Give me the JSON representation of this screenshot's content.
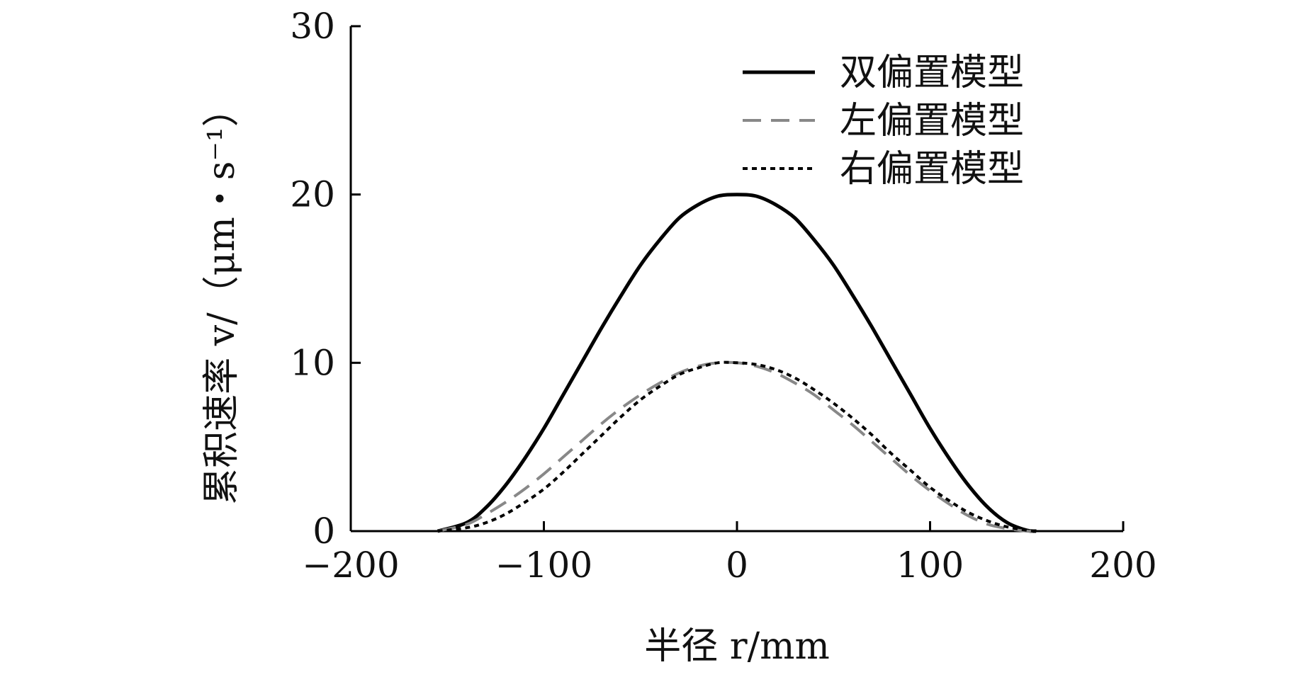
{
  "chart_data": {
    "type": "line",
    "xlabel": "半径 r/mm",
    "ylabel": "累积速率 v/（μm・s⁻¹）",
    "xlim": [
      -200,
      200
    ],
    "ylim": [
      0,
      30
    ],
    "xticks": [
      -200,
      -100,
      0,
      100,
      200
    ],
    "xtick_labels": [
      "−200",
      "−100",
      "0",
      "100",
      "200"
    ],
    "yticks": [
      0,
      10,
      20,
      30
    ],
    "ytick_labels": [
      "0",
      "10",
      "20",
      "30"
    ],
    "grid": false,
    "legend_position": "top-right",
    "x": [
      -155,
      -140,
      -130,
      -120,
      -110,
      -100,
      -90,
      -80,
      -70,
      -60,
      -50,
      -40,
      -30,
      -20,
      -10,
      0,
      10,
      20,
      30,
      40,
      50,
      60,
      70,
      80,
      90,
      100,
      110,
      120,
      130,
      140,
      150,
      155
    ],
    "series": [
      {
        "name": "双偏置模型",
        "color": "#000000",
        "style": "solid",
        "values": [
          0.0,
          0.5,
          1.4,
          2.7,
          4.3,
          6.1,
          8.1,
          10.1,
          12.1,
          14.0,
          15.8,
          17.3,
          18.6,
          19.4,
          19.9,
          20.0,
          19.9,
          19.4,
          18.6,
          17.3,
          15.8,
          14.0,
          12.1,
          10.1,
          8.1,
          6.1,
          4.3,
          2.7,
          1.4,
          0.5,
          0.05,
          0.0
        ]
      },
      {
        "name": "左偏置模型",
        "color": "#888888",
        "style": "dashed",
        "values": [
          0.0,
          0.4,
          1.0,
          1.7,
          2.5,
          3.4,
          4.4,
          5.4,
          6.4,
          7.3,
          8.1,
          8.8,
          9.4,
          9.8,
          10.0,
          10.0,
          9.8,
          9.4,
          8.8,
          8.1,
          7.2,
          6.3,
          5.3,
          4.3,
          3.3,
          2.4,
          1.6,
          0.9,
          0.4,
          0.15,
          0.0,
          0.0
        ]
      },
      {
        "name": "右偏置模型",
        "color": "#000000",
        "style": "dotted",
        "values": [
          0.0,
          0.2,
          0.5,
          1.0,
          1.7,
          2.5,
          3.5,
          4.6,
          5.7,
          6.8,
          7.8,
          8.6,
          9.3,
          9.7,
          10.0,
          10.0,
          9.9,
          9.6,
          9.1,
          8.4,
          7.6,
          6.7,
          5.7,
          4.6,
          3.6,
          2.6,
          1.8,
          1.1,
          0.6,
          0.25,
          0.05,
          0.0
        ]
      }
    ]
  }
}
